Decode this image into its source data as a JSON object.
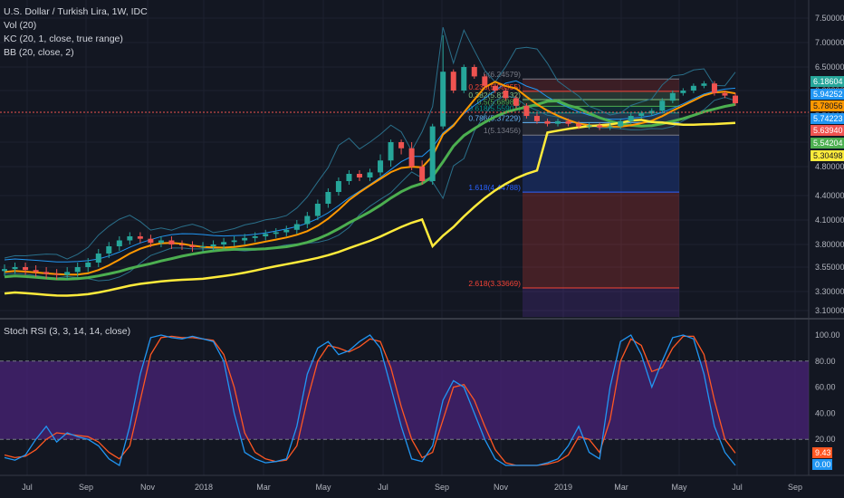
{
  "legend": {
    "symbol": "U.S. Dollar / Turkish Lira, 1W, IDC",
    "vol": "Vol (20)",
    "kc": "KC (20, 1, close, true range)",
    "bb": "BB (20, close, 2)",
    "rsi": "Stoch RSI (3, 3, 14, 14, close)"
  },
  "colors": {
    "background": "#131722",
    "up": "#26a69a",
    "down": "#ef5350",
    "bb_upper": "#2a6f8a",
    "kc": "#2196f3",
    "sma_orange": "#ff9800",
    "sma_green": "#4caf50",
    "sma_yellow": "#ffeb3b",
    "rsi_k": "#2196f3",
    "rsi_d": "#ff5722",
    "rsi_band": "#4a2378"
  },
  "chart_data": [
    {
      "type": "candlestick",
      "title": "U.S. Dollar / Turkish Lira, 1W, IDC",
      "x_ticks": [
        "Jul",
        "Sep",
        "Nov",
        "2018",
        "Mar",
        "May",
        "Jul",
        "Sep",
        "Nov",
        "2019",
        "Mar",
        "May",
        "Jul",
        "Sep"
      ],
      "y_ticks": [
        "7.50000",
        "7.00000",
        "6.50000",
        "6.00000",
        "5.50000",
        "5.00000",
        "4.80000",
        "4.40000",
        "4.10000",
        "3.80000",
        "3.55000",
        "3.30000",
        "3.10000"
      ],
      "ylim": [
        3.1,
        7.5
      ],
      "price_labels": [
        {
          "value": "6.18604",
          "color": "#26a69a"
        },
        {
          "value": "5.94252",
          "color": "#2196f3"
        },
        {
          "value": "5.78056",
          "color": "#ff9800"
        },
        {
          "value": "5.74223",
          "color": "#2196f3"
        },
        {
          "value": "5.63940",
          "color": "#ef5350"
        },
        {
          "value": "5.54204",
          "color": "#4caf50"
        },
        {
          "value": "5.30498",
          "color": "#ffeb3b"
        }
      ],
      "fibonacci": [
        {
          "label": "0(6.24579)"
        },
        {
          "label": "0.236(5.98355)"
        },
        {
          "label": "0.382(5.82132)"
        },
        {
          "label": "0.5(5.68980)"
        },
        {
          "label": "0.618(5.55907)"
        },
        {
          "label": "0.786(5.37229)"
        },
        {
          "label": "1(5.13456)"
        },
        {
          "label": "1.618(4.44788)"
        },
        {
          "label": "2.618(3.33669)"
        }
      ],
      "series": [
        {
          "name": "close",
          "values": [
            3.53,
            3.55,
            3.52,
            3.5,
            3.48,
            3.47,
            3.5,
            3.55,
            3.6,
            3.7,
            3.78,
            3.85,
            3.9,
            3.87,
            3.82,
            3.85,
            3.8,
            3.79,
            3.77,
            3.78,
            3.8,
            3.83,
            3.85,
            3.88,
            3.9,
            3.93,
            3.95,
            3.98,
            4.05,
            4.15,
            4.3,
            4.45,
            4.6,
            4.7,
            4.65,
            4.72,
            4.85,
            5.0,
            4.95,
            4.8,
            4.6,
            5.3,
            6.4,
            6.0,
            6.5,
            6.3,
            6.1,
            6.0,
            5.85,
            5.7,
            5.5,
            5.4,
            5.35,
            5.4,
            5.35,
            5.3,
            5.32,
            5.28,
            5.3,
            5.4,
            5.5,
            5.55,
            5.6,
            5.8,
            5.95,
            6.0,
            6.1,
            6.15,
            5.95,
            5.9,
            5.75
          ]
        }
      ]
    },
    {
      "type": "line",
      "title": "Stoch RSI (3, 3, 14, 14, close)",
      "y_ticks": [
        "100.00",
        "80.00",
        "60.00",
        "40.00",
        "20.00",
        "0.00"
      ],
      "ylim": [
        0,
        100
      ],
      "value_labels": [
        "9.43",
        "0.00"
      ],
      "series": [
        {
          "name": "K",
          "values": [
            6,
            4,
            8,
            20,
            30,
            18,
            25,
            22,
            20,
            15,
            5,
            0,
            30,
            70,
            98,
            100,
            98,
            97,
            99,
            97,
            95,
            80,
            40,
            10,
            5,
            2,
            3,
            5,
            30,
            70,
            90,
            95,
            85,
            88,
            95,
            100,
            90,
            60,
            30,
            5,
            3,
            15,
            50,
            65,
            60,
            40,
            20,
            5,
            0,
            0,
            0,
            0,
            2,
            5,
            15,
            30,
            10,
            5,
            60,
            95,
            100,
            85,
            60,
            80,
            98,
            100,
            97,
            70,
            30,
            10,
            0
          ]
        },
        {
          "name": "D",
          "values": [
            8,
            6,
            7,
            12,
            20,
            25,
            24,
            23,
            22,
            18,
            10,
            5,
            15,
            50,
            85,
            98,
            99,
            98,
            98,
            97,
            96,
            85,
            60,
            25,
            10,
            5,
            3,
            4,
            15,
            50,
            80,
            92,
            90,
            87,
            91,
            97,
            95,
            75,
            45,
            20,
            6,
            10,
            35,
            60,
            62,
            50,
            30,
            12,
            2,
            0,
            0,
            0,
            1,
            3,
            8,
            22,
            20,
            10,
            35,
            80,
            97,
            92,
            72,
            75,
            90,
            99,
            99,
            85,
            50,
            20,
            9.43
          ]
        }
      ]
    }
  ]
}
